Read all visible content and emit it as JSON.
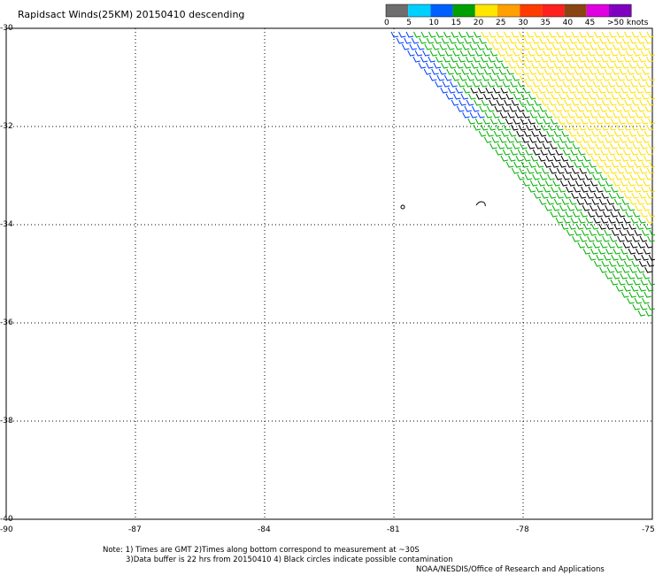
{
  "title": "Rapidsact Winds(25KM) 20150410 descending",
  "legend": {
    "tick_labels": [
      "0",
      "5",
      "10",
      "15",
      "20",
      "25",
      "30",
      "35",
      "40",
      "45",
      ">50 knots"
    ],
    "colors": [
      "#6e6e6e",
      "#00d0ff",
      "#0060ff",
      "#00a000",
      "#ffe600",
      "#ffa000",
      "#ff3c00",
      "#ff2020",
      "#8b4513",
      "#e000e0",
      "#8000c0"
    ]
  },
  "map": {
    "x_ticks": [
      "-90",
      "-87",
      "-84",
      "-81",
      "-78",
      "-75"
    ],
    "y_ticks": [
      "-30",
      "-32",
      "-34",
      "-36",
      "-38",
      "-40"
    ],
    "lon_range": [
      -90,
      -75
    ],
    "lat_range": [
      -30,
      -40
    ],
    "grid": "dotted"
  },
  "wind_regions": [
    {
      "name": "blue",
      "color": "#0040ff",
      "speed_knots": "10-15"
    },
    {
      "name": "green",
      "color": "#00b000",
      "speed_knots": "15-20"
    },
    {
      "name": "black",
      "color": "#000000",
      "speed_knots": "contaminated"
    },
    {
      "name": "yellow",
      "color": "#ffe000",
      "speed_knots": "20-25"
    }
  ],
  "notes": {
    "line1": "Note: 1) Times are GMT 2)Times along bottom correspond to measurement at ~30S",
    "line2": "3)Data buffer is 22 hrs from 20150410 4) Black circles indicate possible contamination",
    "line3": "NOAA/NESDIS/Office of Research and Applications"
  }
}
